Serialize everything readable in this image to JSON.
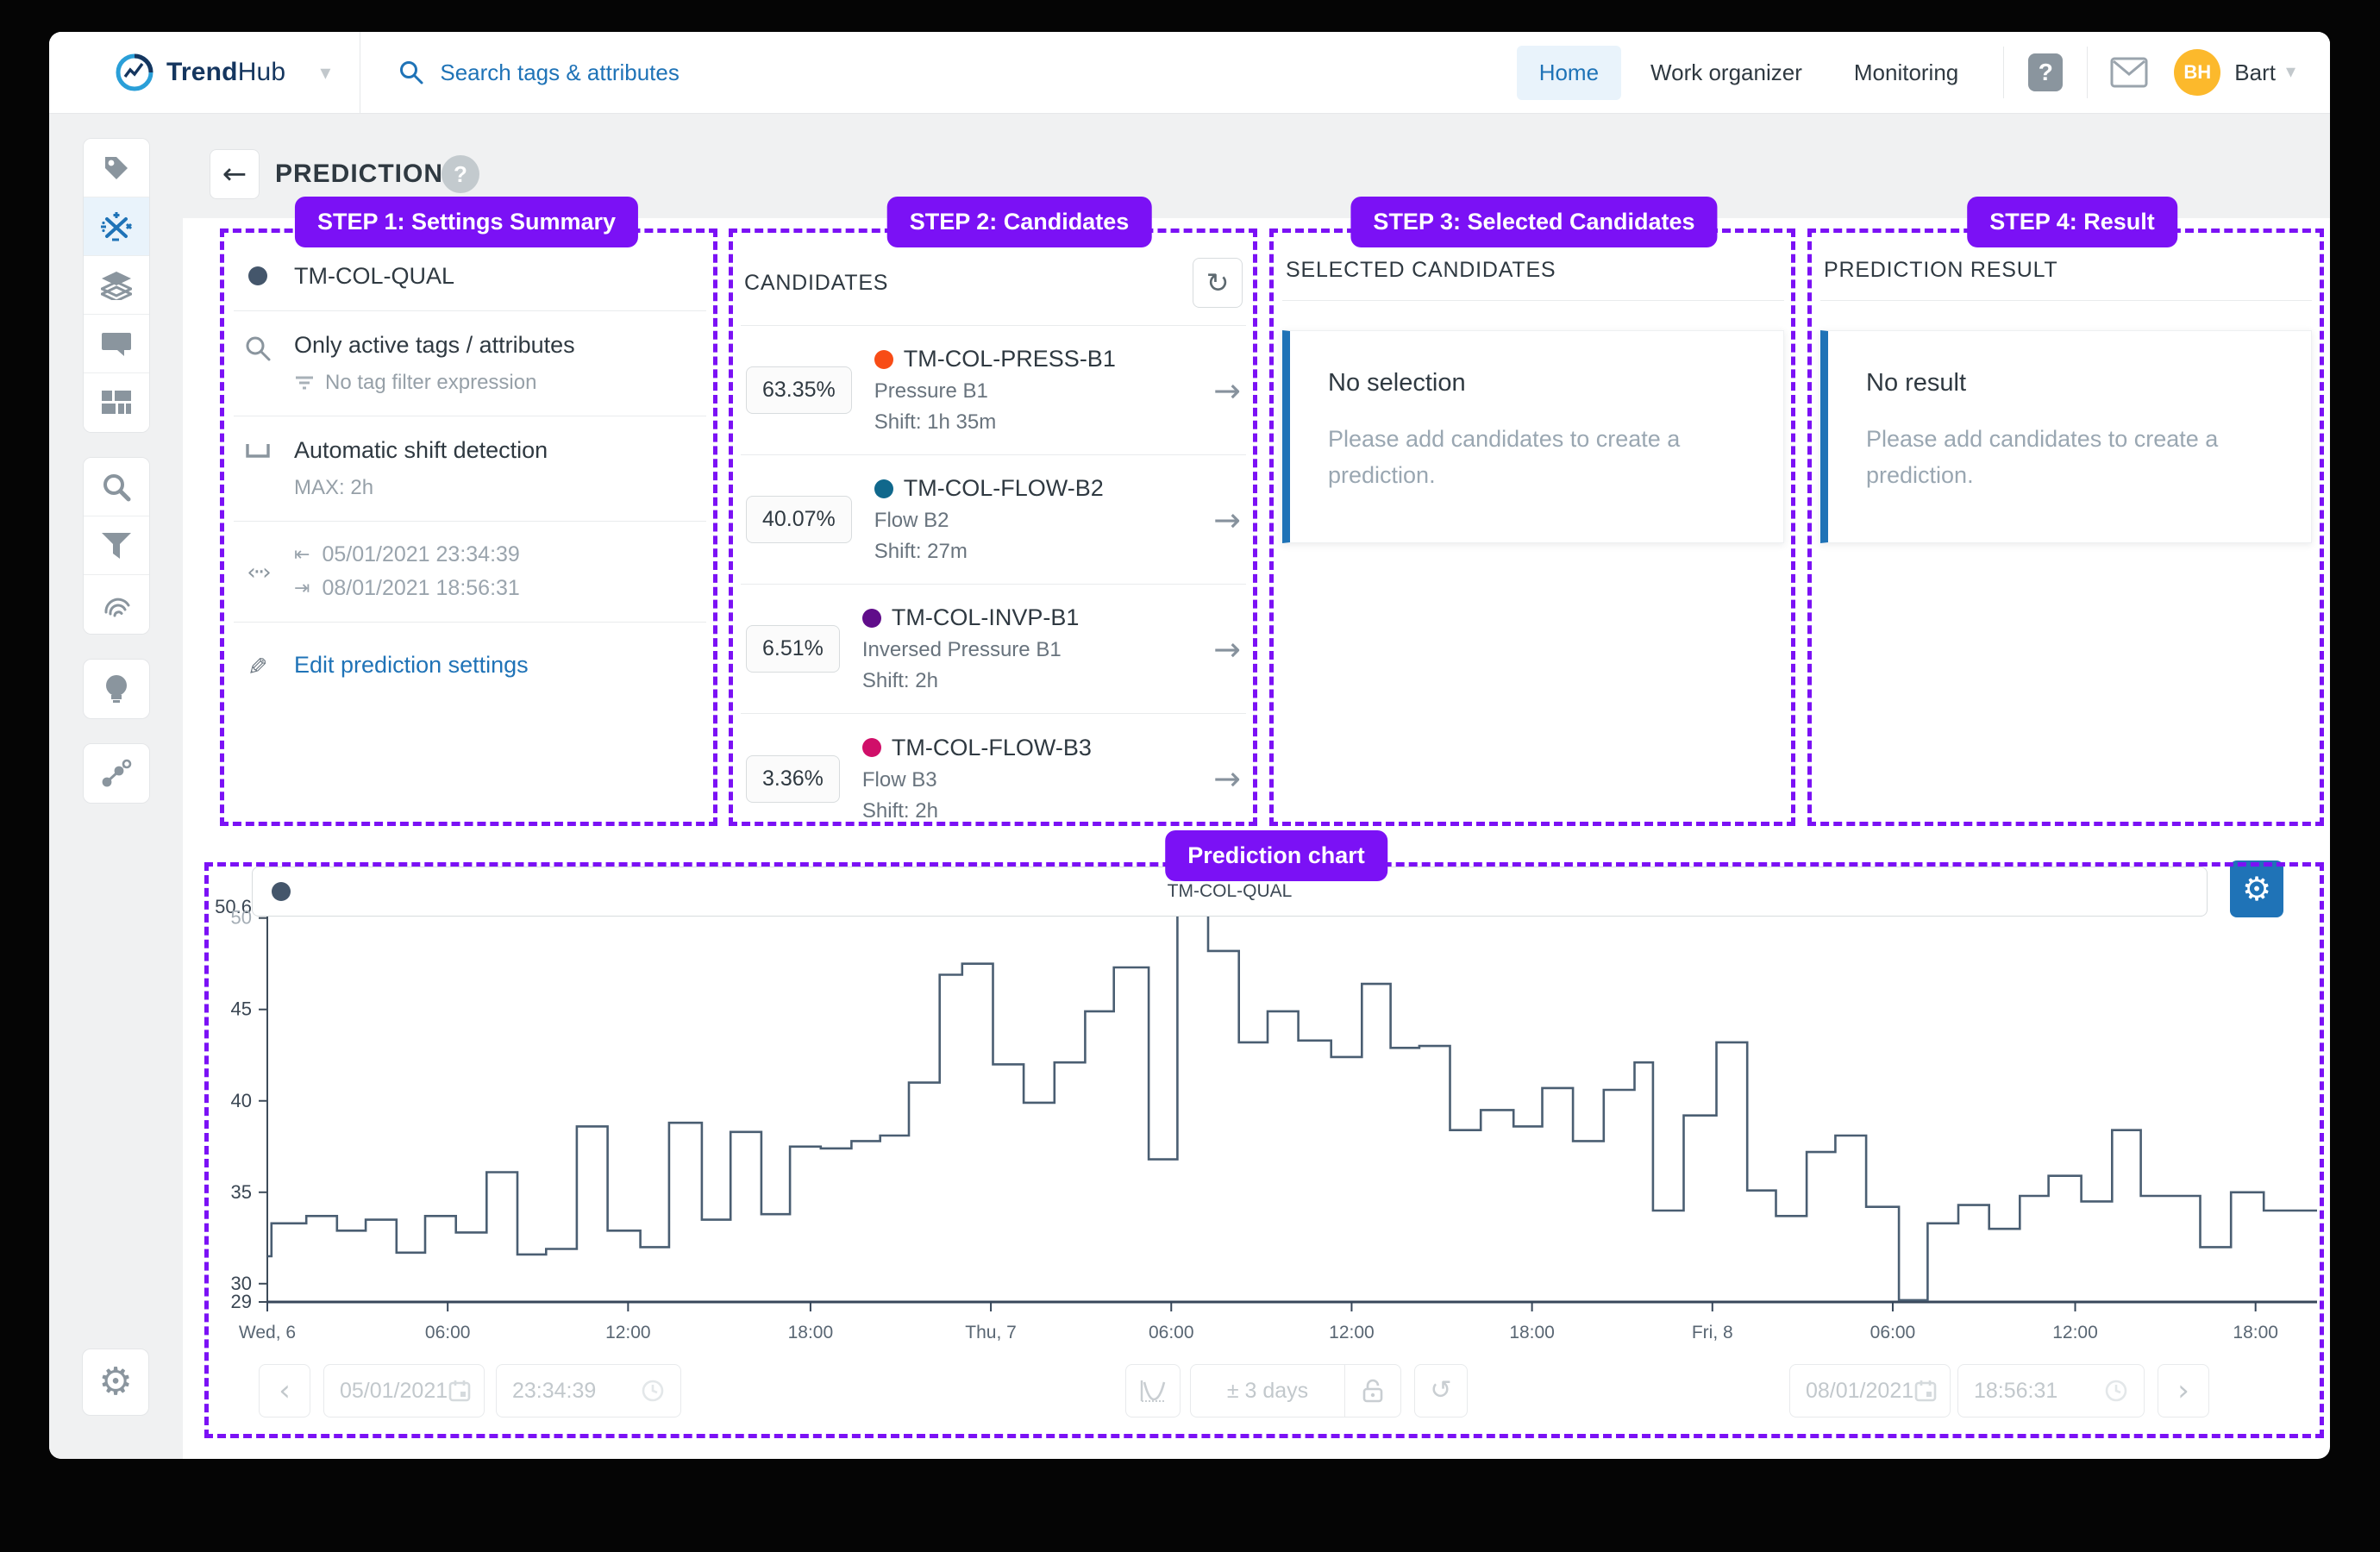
{
  "navbar": {
    "brand_bold": "Trend",
    "brand_light": "Hub",
    "search_placeholder": "Search tags & attributes",
    "tabs": [
      {
        "label": "Home",
        "active": true
      },
      {
        "label": "Work organizer",
        "active": false
      },
      {
        "label": "Monitoring",
        "active": false
      }
    ],
    "help_glyph": "?",
    "user": {
      "initials": "BH",
      "name": "Bart"
    }
  },
  "sidebar": {
    "items": [
      {
        "icon": "tag"
      },
      {
        "icon": "prediction-calculations",
        "active": true
      },
      {
        "icon": "layers"
      },
      {
        "icon": "comments"
      },
      {
        "icon": "dashboard"
      },
      {
        "icon": "search"
      },
      {
        "icon": "filter"
      },
      {
        "icon": "fingerprint"
      },
      {
        "icon": "recommendations-bulb"
      },
      {
        "icon": "context-graph"
      },
      {
        "icon": "settings-gear"
      }
    ]
  },
  "header": {
    "title": "PREDICTION",
    "help_glyph": "?"
  },
  "annotations": {
    "color": "#7b11f5",
    "steps": [
      {
        "label": "STEP 1: Settings Summary"
      },
      {
        "label": "STEP 2: Candidates"
      },
      {
        "label": "STEP 3: Selected Candidates"
      },
      {
        "label": "STEP 4: Result"
      }
    ],
    "chart_label": "Prediction chart"
  },
  "settings_summary": {
    "tag_name": "TM-COL-QUAL",
    "tag_color": "#44566b",
    "filter_title": "Only active tags / attributes",
    "filter_sub": "No tag filter expression",
    "shift_title": "Automatic shift detection",
    "shift_sub": "MAX: 2h",
    "range_start": "05/01/2021 23:34:39",
    "range_end": "08/01/2021 18:56:31",
    "edit_link": "Edit prediction settings"
  },
  "candidates": {
    "title": "CANDIDATES",
    "items": [
      {
        "score": "63.35%",
        "name": "TM-COL-PRESS-B1",
        "description": "Pressure B1",
        "shift": "Shift: 1h 35m",
        "color": "#f84c16"
      },
      {
        "score": "40.07%",
        "name": "TM-COL-FLOW-B2",
        "description": "Flow B2",
        "shift": "Shift: 27m",
        "color": "#10688c"
      },
      {
        "score": "6.51%",
        "name": "TM-COL-INVP-B1",
        "description": "Inversed Pressure B1",
        "shift": "Shift: 2h",
        "color": "#600d8a"
      },
      {
        "score": "3.36%",
        "name": "TM-COL-FLOW-B3",
        "description": "Flow B3",
        "shift": "Shift: 2h",
        "color": "#d00f69"
      }
    ]
  },
  "selected_candidates": {
    "title": "SELECTED CANDIDATES",
    "empty_title": "No selection",
    "empty_text": "Please add candidates to create a prediction."
  },
  "prediction_result": {
    "title": "PREDICTION RESULT",
    "empty_title": "No result",
    "empty_text": "Please add candidates to create a prediction."
  },
  "chart_data": {
    "type": "line",
    "line_shape": "step-hv",
    "title": "TM-COL-QUAL",
    "series": [
      {
        "name": "TM-COL-QUAL",
        "color": "#4a5e72"
      }
    ],
    "ylim": [
      29,
      50.6
    ],
    "y_ticks": [
      {
        "v": 50.6,
        "label": "50.6",
        "strong": true
      },
      {
        "v": 50,
        "label": "50",
        "strong": false
      },
      {
        "v": 45,
        "label": "45",
        "strong": true
      },
      {
        "v": 40,
        "label": "40",
        "strong": true
      },
      {
        "v": 35,
        "label": "35",
        "strong": true
      },
      {
        "v": 30,
        "label": "30",
        "strong": true
      },
      {
        "v": 29,
        "label": "29",
        "strong": true
      }
    ],
    "x_ticks": [
      {
        "pos": 0.0,
        "label": "Wed, 6"
      },
      {
        "pos": 8.8,
        "label": "06:00"
      },
      {
        "pos": 17.6,
        "label": "12:00"
      },
      {
        "pos": 26.5,
        "label": "18:00"
      },
      {
        "pos": 35.3,
        "label": "Thu, 7"
      },
      {
        "pos": 44.1,
        "label": "06:00"
      },
      {
        "pos": 52.9,
        "label": "12:00"
      },
      {
        "pos": 61.7,
        "label": "18:00"
      },
      {
        "pos": 70.5,
        "label": "Fri, 8"
      },
      {
        "pos": 79.3,
        "label": "06:00"
      },
      {
        "pos": 88.2,
        "label": "12:00"
      },
      {
        "pos": 97.0,
        "label": "18:00"
      }
    ],
    "points": [
      [
        0.0,
        31.5
      ],
      [
        0.2,
        33.3
      ],
      [
        1.9,
        33.7
      ],
      [
        3.4,
        32.9
      ],
      [
        4.8,
        33.5
      ],
      [
        6.3,
        31.7
      ],
      [
        7.7,
        33.7
      ],
      [
        9.2,
        32.8
      ],
      [
        10.7,
        36.1
      ],
      [
        12.2,
        31.6
      ],
      [
        13.6,
        31.9
      ],
      [
        15.1,
        38.6
      ],
      [
        16.6,
        32.9
      ],
      [
        18.2,
        32.0
      ],
      [
        19.6,
        38.8
      ],
      [
        21.2,
        33.5
      ],
      [
        22.6,
        38.3
      ],
      [
        24.1,
        33.8
      ],
      [
        25.5,
        37.5
      ],
      [
        27.0,
        37.4
      ],
      [
        28.5,
        37.8
      ],
      [
        29.9,
        38.1
      ],
      [
        31.3,
        41.0
      ],
      [
        32.8,
        46.9
      ],
      [
        33.9,
        47.5
      ],
      [
        35.4,
        42.0
      ],
      [
        36.9,
        39.9
      ],
      [
        38.4,
        42.1
      ],
      [
        39.9,
        44.9
      ],
      [
        41.3,
        47.3
      ],
      [
        43.0,
        36.8
      ],
      [
        44.4,
        50.3
      ],
      [
        45.9,
        48.2
      ],
      [
        47.4,
        43.2
      ],
      [
        48.8,
        44.9
      ],
      [
        50.3,
        43.3
      ],
      [
        51.9,
        42.4
      ],
      [
        53.4,
        46.4
      ],
      [
        54.8,
        42.9
      ],
      [
        56.2,
        43.0
      ],
      [
        57.7,
        38.4
      ],
      [
        59.2,
        39.5
      ],
      [
        60.8,
        38.6
      ],
      [
        62.2,
        40.7
      ],
      [
        63.7,
        37.8
      ],
      [
        65.2,
        40.6
      ],
      [
        66.7,
        42.1
      ],
      [
        67.6,
        34.0
      ],
      [
        69.1,
        39.2
      ],
      [
        70.7,
        43.2
      ],
      [
        72.2,
        35.1
      ],
      [
        73.6,
        33.7
      ],
      [
        75.1,
        37.2
      ],
      [
        76.5,
        38.1
      ],
      [
        78.0,
        34.2
      ],
      [
        79.6,
        29.1
      ],
      [
        81.0,
        33.3
      ],
      [
        82.5,
        34.3
      ],
      [
        84.0,
        33.0
      ],
      [
        85.5,
        34.8
      ],
      [
        86.9,
        35.9
      ],
      [
        88.5,
        34.5
      ],
      [
        90.0,
        38.4
      ],
      [
        91.4,
        34.8
      ],
      [
        94.3,
        32.0
      ],
      [
        95.8,
        35.0
      ],
      [
        97.4,
        34.0
      ]
    ],
    "grid": false,
    "legend_position": "top"
  },
  "chart_toolbar": {
    "start_date": "05/01/2021",
    "start_time": "23:34:39",
    "range_label": "± 3 days",
    "end_date": "08/01/2021",
    "end_time": "18:56:31"
  }
}
